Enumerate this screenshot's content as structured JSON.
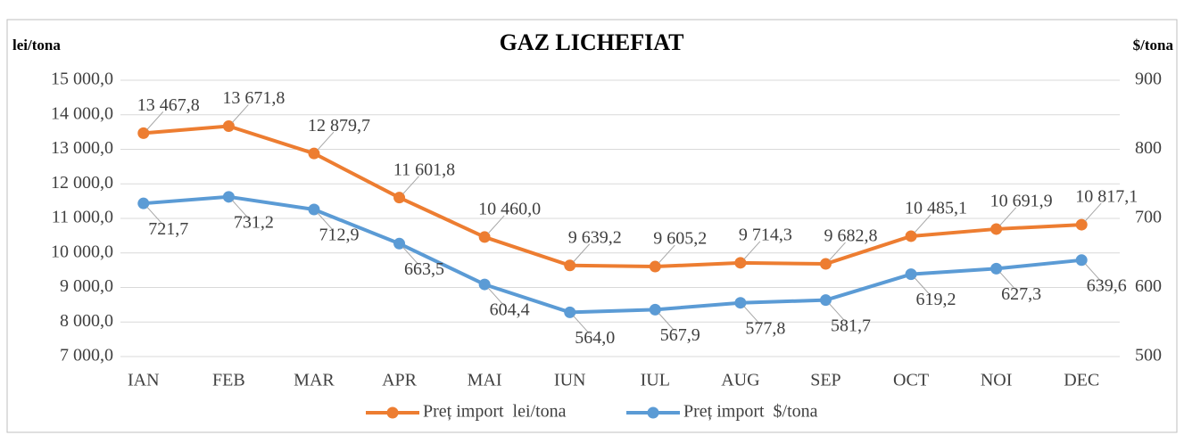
{
  "chart_data": {
    "type": "line",
    "title": "GAZ LICHEFIAT",
    "y_label": "lei/tona",
    "y2_label": "$/tona",
    "categories": [
      "IAN",
      "FEB",
      "MAR",
      "APR",
      "MAI",
      "IUN",
      "IUL",
      "AUG",
      "SEP",
      "OCT",
      "NOI",
      "DEC"
    ],
    "series": [
      {
        "name": "Preț import  lei/tona",
        "color": "#ED7D31",
        "axis": "y",
        "values": [
          13467.8,
          13671.8,
          12879.7,
          11601.8,
          10460.0,
          9639.2,
          9605.2,
          9714.3,
          9682.8,
          10485.1,
          10691.9,
          10817.1
        ],
        "value_labels": [
          "13 467,8",
          "13 671,8",
          "12 879,7",
          "11 601,8",
          "10 460,0",
          "9 639,2",
          "9 605,2",
          "9 714,3",
          "9 682,8",
          "10 485,1",
          "10 691,9",
          "10 817,1"
        ]
      },
      {
        "name": "Preț import  $/tona",
        "color": "#5B9BD5",
        "axis": "y2",
        "values": [
          721.7,
          731.2,
          712.9,
          663.5,
          604.4,
          564.0,
          567.9,
          577.8,
          581.7,
          619.2,
          627.3,
          639.6
        ],
        "value_labels": [
          "721,7",
          "731,2",
          "712,9",
          "663,5",
          "604,4",
          "564,0",
          "567,9",
          "577,8",
          "581,7",
          "619,2",
          "627,3",
          "639,6"
        ]
      }
    ],
    "ylim": [
      7000,
      15000
    ],
    "yticks": [
      {
        "value": 7000,
        "label": "7 000,0"
      },
      {
        "value": 8000,
        "label": "8 000,0"
      },
      {
        "value": 9000,
        "label": "9 000,0"
      },
      {
        "value": 10000,
        "label": "10 000,0"
      },
      {
        "value": 11000,
        "label": "11 000,0"
      },
      {
        "value": 12000,
        "label": "12 000,0"
      },
      {
        "value": 13000,
        "label": "13 000,0"
      },
      {
        "value": 14000,
        "label": "14 000,0"
      },
      {
        "value": 15000,
        "label": "15 000,0"
      }
    ],
    "y2lim": [
      500,
      900
    ],
    "y2ticks": [
      500,
      600,
      700,
      800,
      900
    ],
    "grid": true,
    "legend": "bottom"
  }
}
